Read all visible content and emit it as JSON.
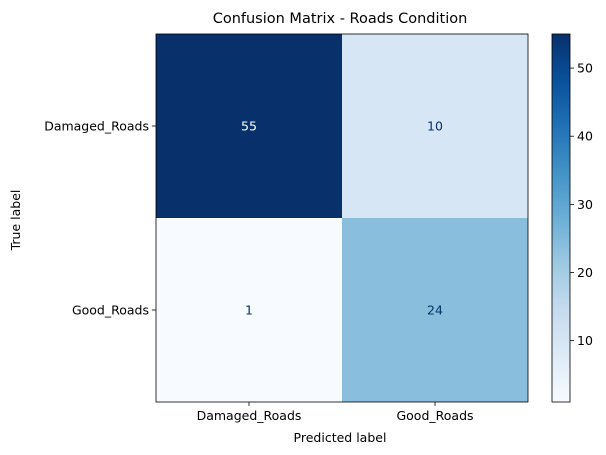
{
  "chart_data": {
    "type": "heatmap",
    "title": "Confusion Matrix - Roads Condition",
    "xlabel": "Predicted label",
    "ylabel": "True label",
    "x_categories": [
      "Damaged_Roads",
      "Good_Roads"
    ],
    "y_categories": [
      "Damaged_Roads",
      "Good_Roads"
    ],
    "values": [
      [
        55,
        10
      ],
      [
        1,
        24
      ]
    ],
    "colormap": "Blues",
    "colorbar": {
      "min": 1,
      "max": 55,
      "ticks": [
        10,
        20,
        30,
        40,
        50
      ],
      "tick_labels": [
        "10",
        "20",
        "30",
        "40",
        "50"
      ]
    },
    "grid": false
  },
  "colors": {
    "cell_text_dark_bg": "#ffffff",
    "cell_text_light_bg": "#08306b",
    "axis": "#000000"
  }
}
